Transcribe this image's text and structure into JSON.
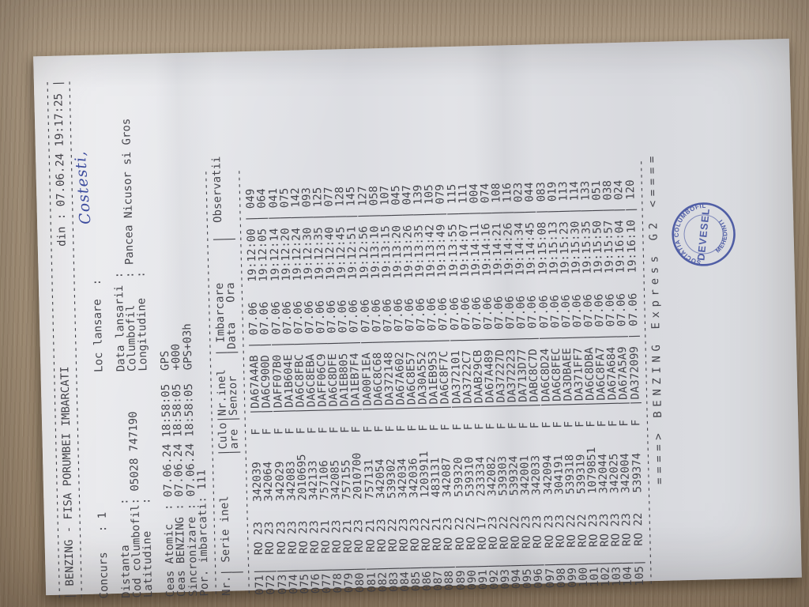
{
  "photo": {
    "desk_color": "#a5927a",
    "paper_color": "#e2e3e7",
    "ink_color": "#45454c",
    "stamp_ink": "#36479b",
    "handwriting_ink": "#2e3f99"
  },
  "document": {
    "title_left": "| BENZING - FISA PORUMBEI IMBARCATI",
    "printed_at_label": "din :",
    "printed_at": "07.06.24 19:17:25",
    "title_end": "|",
    "separators": {
      "full": 78,
      "table": 64,
      "dash_char": "-"
    },
    "header_lines": [
      "",
      "Concurs   : 1                     Loc lansare  :",
      "",
      "Distanta      :                   Data lansarii :",
      "Cod columbofil: 05028 747190      Columbofil    : Pancea Nicusor si Gros",
      "Latitudine    :                   Longitudine   :",
      "",
      "Ceas Atomic  : 07.06.24 18:58:05  GPS",
      "Ceas BENZING : 07.06.24 18:58:05  +000",
      "Sincronizare : 07.06.24 18:58:05  GPS+03h",
      "Por. imbarcati: 111"
    ],
    "handwriting": "Costesti,",
    "table": {
      "header1": "Nr.| Serie inel      |Culo|Nr.inel  | Imbarcare      |  Observatii",
      "header2": "   |                 |are |Senzor   |Data   Ora      |",
      "country": "RO",
      "color": "F",
      "date": "07.06",
      "rows": [
        [
          "071",
          "23",
          "342039",
          "DA67A4AB",
          "19:12:00",
          "049"
        ],
        [
          "072",
          "23",
          "342064",
          "DA6C900D",
          "19:12:05",
          "064"
        ],
        [
          "073",
          "23",
          "342029",
          "DAFF07B0",
          "19:12:14",
          "041"
        ],
        [
          "074",
          "23",
          "342083",
          "DA1B604E",
          "19:12:20",
          "075"
        ],
        [
          "075",
          "23",
          "2010695",
          "DA6C8FBC",
          "19:12:24",
          "142"
        ],
        [
          "076",
          "23",
          "342133",
          "DA6C8EBA",
          "19:12:30",
          "093"
        ],
        [
          "077",
          "21",
          "757106",
          "DAFF06C9",
          "19:12:35",
          "125"
        ],
        [
          "078",
          "23",
          "342085",
          "DA6C8DFE",
          "19:12:40",
          "077"
        ],
        [
          "079",
          "21",
          "757155",
          "DA1EB805",
          "19:12:45",
          "128"
        ],
        [
          "080",
          "23",
          "2010700",
          "DA1EB7F4",
          "19:12:51",
          "145"
        ],
        [
          "081",
          "21",
          "757131",
          "DA00F1EA",
          "19:12:56",
          "127"
        ],
        [
          "082",
          "23",
          "342054",
          "DA6C8C68",
          "19:13:10",
          "058"
        ],
        [
          "083",
          "22",
          "539302",
          "DA372148",
          "19:13:15",
          "107"
        ],
        [
          "084",
          "23",
          "342034",
          "DA67A602",
          "19:13:20",
          "045"
        ],
        [
          "085",
          "23",
          "342036",
          "DA6C8E57",
          "19:13:26",
          "047"
        ],
        [
          "086",
          "22",
          "1203911",
          "DA30A552",
          "19:13:35",
          "139"
        ],
        [
          "087",
          "21",
          "483131",
          "DA1EB953",
          "19:13:42",
          "105"
        ],
        [
          "088",
          "23",
          "342087",
          "DA6C8F7C",
          "19:13:49",
          "079"
        ],
        [
          "089",
          "22",
          "539320",
          "DA372101",
          "19:13:55",
          "115"
        ],
        [
          "090",
          "22",
          "539310",
          "DA3722C7",
          "19:14:07",
          "111"
        ],
        [
          "091",
          "17",
          "233334",
          "DAAB29CB",
          "19:14:11",
          "004"
        ],
        [
          "092",
          "23",
          "342082",
          "DA67A489",
          "19:14:16",
          "074"
        ],
        [
          "093",
          "22",
          "539303",
          "DA37227D",
          "19:14:21",
          "108"
        ],
        [
          "094",
          "22",
          "539324",
          "DA372223",
          "19:14:26",
          "116"
        ],
        [
          "095",
          "23",
          "342001",
          "DA713D77",
          "19:14:34",
          "023"
        ],
        [
          "096",
          "23",
          "342033",
          "DABC8C7D",
          "19:14:45",
          "044"
        ],
        [
          "097",
          "23",
          "342094",
          "DA6C8D24",
          "19:15:08",
          "083"
        ],
        [
          "098",
          "23",
          "304191",
          "DA6C8FEC",
          "19:15:13",
          "019"
        ],
        [
          "099",
          "22",
          "539318",
          "DA3DBAEE",
          "19:15:23",
          "113"
        ],
        [
          "100",
          "22",
          "539319",
          "DA371FF7",
          "19:15:30",
          "114"
        ],
        [
          "101",
          "23",
          "1079851",
          "DA6C8DBA",
          "19:15:35",
          "133"
        ],
        [
          "102",
          "23",
          "342044",
          "DA6C8FA7",
          "19:15:50",
          "051"
        ],
        [
          "103",
          "23",
          "342025",
          "DA67A684",
          "19:15:57",
          "038"
        ],
        [
          "104",
          "23",
          "342004",
          "DA67A5A9",
          "19:16:04",
          "024"
        ],
        [
          "105",
          "22",
          "539374",
          "DA372099",
          "19:16:10",
          "120"
        ]
      ]
    },
    "footer": "====> BENZING Express G2 <====",
    "stamp": {
      "top": "ASOCIATIA COLUMBOFILA",
      "bottom": "MEHEDINTI",
      "center": "DEVESEL"
    }
  }
}
